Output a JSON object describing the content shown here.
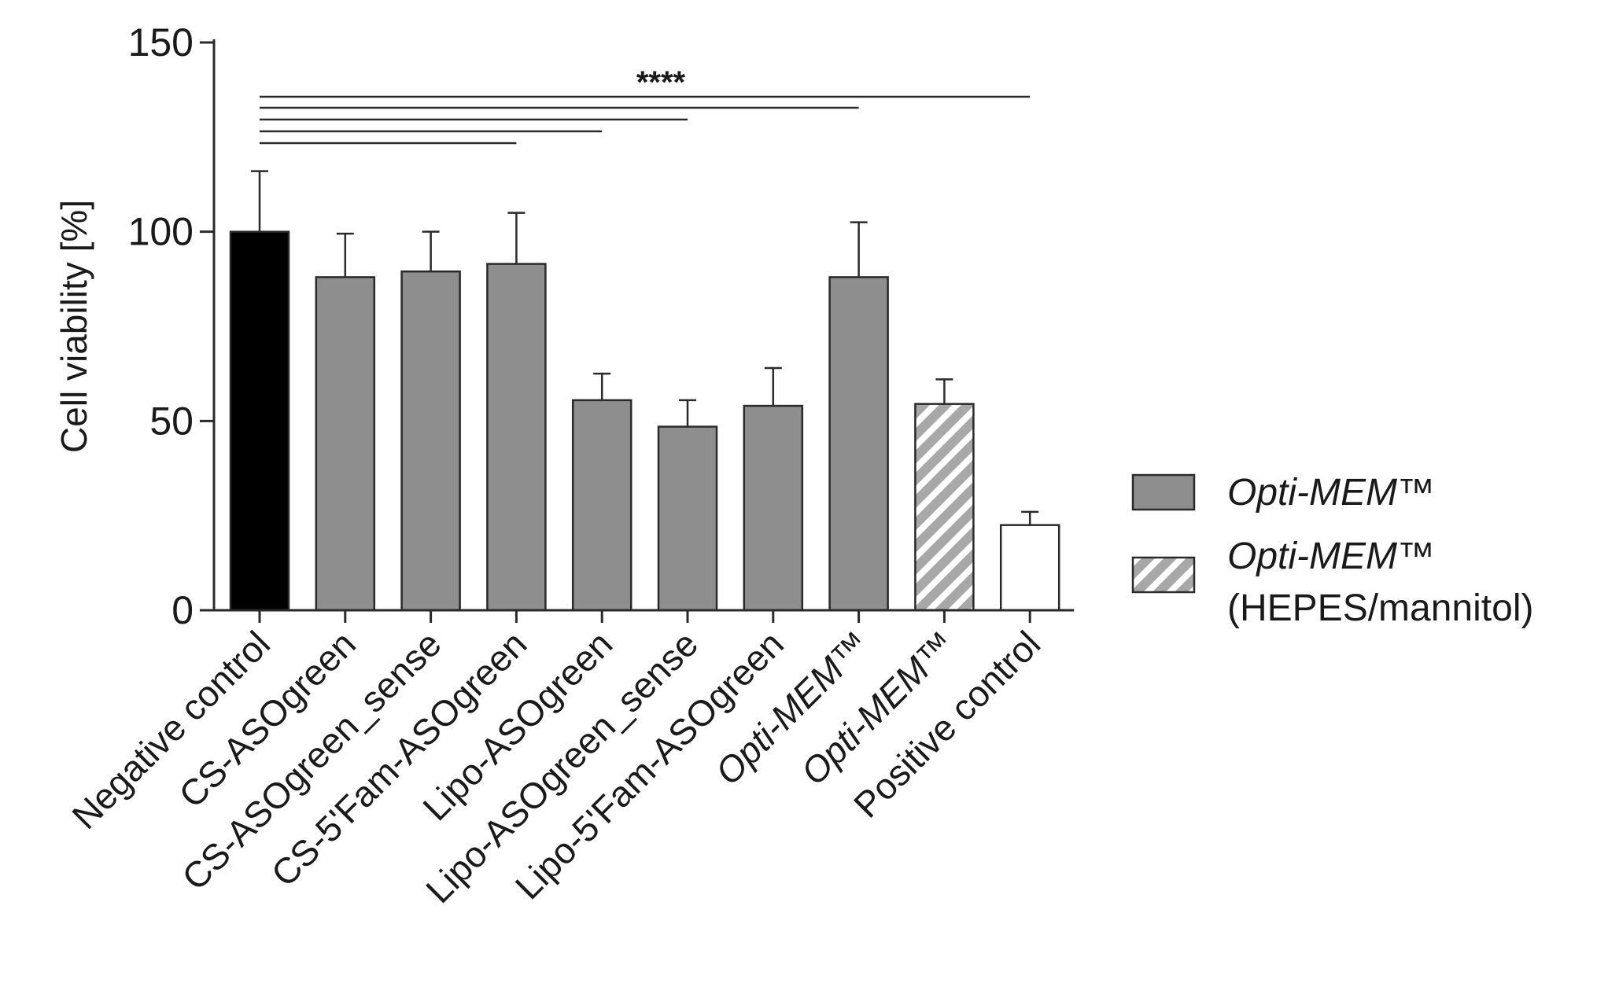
{
  "chart_data": {
    "type": "bar",
    "title": "",
    "xlabel": "",
    "ylabel": "Cell viability [%]",
    "ylim": [
      0,
      150
    ],
    "yticks": [
      0,
      50,
      100,
      150
    ],
    "grid": false,
    "categories": [
      "Negative control",
      "CS-ASOgreen",
      "CS-ASOgreen_sense",
      "CS-5'Fam-ASOgreen",
      "Lipo-ASOgreen",
      "Lipo-ASOgreen_sense",
      "Lipo-5'Fam-ASOgreen",
      "Opti-MEM™",
      "Opti-MEM™",
      "Positive control"
    ],
    "category_italic": [
      false,
      false,
      false,
      false,
      false,
      false,
      false,
      true,
      true,
      false
    ],
    "values": [
      100,
      88,
      89.5,
      91.5,
      55.5,
      48.5,
      54,
      88,
      54.5,
      22.5
    ],
    "errors": [
      16,
      11.5,
      10.5,
      13.5,
      7,
      7,
      10,
      14.5,
      6.5,
      3.5
    ],
    "fills": [
      "black",
      "gray",
      "gray",
      "gray",
      "gray",
      "gray",
      "gray",
      "gray",
      "hatched",
      "white"
    ],
    "colors": {
      "black": "#000000",
      "gray": "#8e8e8e",
      "white": "#ffffff",
      "hatch_bg": "#a8a8a8",
      "hatch_fg": "#ffffff",
      "axis": "#2a2a2a"
    },
    "legend": {
      "position": "right",
      "entries": [
        {
          "fill": "gray",
          "label": "Opti-MEM™",
          "italic": true
        },
        {
          "fill": "hatched",
          "label": "Opti-MEM™",
          "label_line2": "(HEPES/mannitol)",
          "italic": true
        }
      ]
    },
    "significance": {
      "label": "****",
      "from_category": 0,
      "to_categories": [
        9,
        7,
        5,
        4,
        3
      ]
    }
  }
}
